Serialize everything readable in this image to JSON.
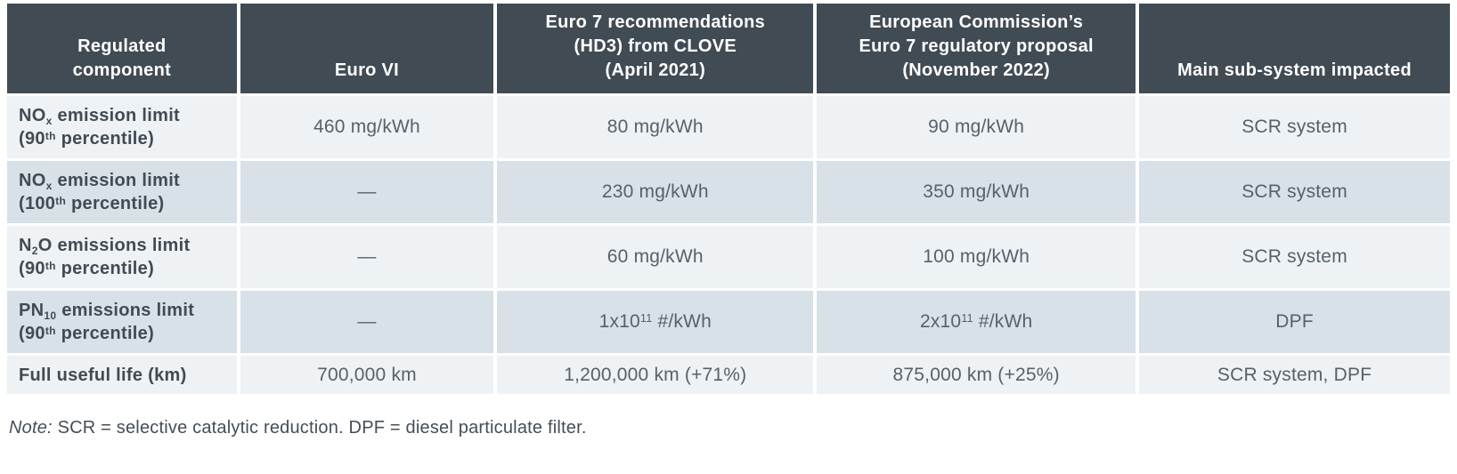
{
  "table": {
    "header": {
      "regulated_component": "Regulated\ncomponent",
      "euro_vi": "Euro VI",
      "clove": "Euro 7 recommendations\n(HD3) from CLOVE\n(April 2021)",
      "ec_proposal": "European Commission’s\nEuro 7 regulatory proposal\n(November 2022)",
      "subsystem": "Main sub-system impacted"
    },
    "rows": [
      {
        "label": {
          "pre": "NO",
          "sub": "x",
          "mid": " emission limit\n(90",
          "sup": "th",
          "post": " percentile)"
        },
        "euro_vi": {
          "pre": "460 mg/kWh"
        },
        "clove": {
          "pre": "80 mg/kWh"
        },
        "ec": {
          "pre": "90 mg/kWh"
        },
        "subsystem": {
          "pre": "SCR system"
        }
      },
      {
        "label": {
          "pre": "NO",
          "sub": "x",
          "mid": " emission limit\n(100",
          "sup": "th",
          "post": " percentile)"
        },
        "euro_vi": {
          "pre": "—"
        },
        "clove": {
          "pre": "230 mg/kWh"
        },
        "ec": {
          "pre": "350 mg/kWh"
        },
        "subsystem": {
          "pre": "SCR system"
        }
      },
      {
        "label": {
          "pre": "N",
          "sub": "2",
          "mid": "O emissions limit\n(90",
          "sup": "th",
          "post": " percentile)"
        },
        "euro_vi": {
          "pre": "—"
        },
        "clove": {
          "pre": "60 mg/kWh"
        },
        "ec": {
          "pre": "100 mg/kWh"
        },
        "subsystem": {
          "pre": "SCR system"
        }
      },
      {
        "label": {
          "pre": "PN",
          "sub": "10",
          "mid": " emissions limit\n(90",
          "sup": "th",
          "post": " percentile)"
        },
        "euro_vi": {
          "pre": "—"
        },
        "clove": {
          "pre": "1x10",
          "sup": "11",
          "post": " #/kWh"
        },
        "ec": {
          "pre": "2x10",
          "sup": "11",
          "post": " #/kWh"
        },
        "subsystem": {
          "pre": "DPF"
        }
      },
      {
        "label": {
          "pre": "Full useful life (km)"
        },
        "euro_vi": {
          "pre": "700,000 km"
        },
        "clove": {
          "pre": "1,200,000 km (+71%)"
        },
        "ec": {
          "pre": "875,000 km (+25%)"
        },
        "subsystem": {
          "pre": "SCR system, DPF"
        }
      }
    ]
  },
  "note": {
    "label": "Note:",
    "text": " SCR = selective catalytic reduction. DPF = diesel particulate filter."
  },
  "colors": {
    "header_bg": "#414b54",
    "header_text": "#ffffff",
    "row_light_bg": "#eef2f4",
    "row_dark_bg": "#d7e1e7",
    "label_text": "#414b54",
    "data_text": "#57616a"
  }
}
